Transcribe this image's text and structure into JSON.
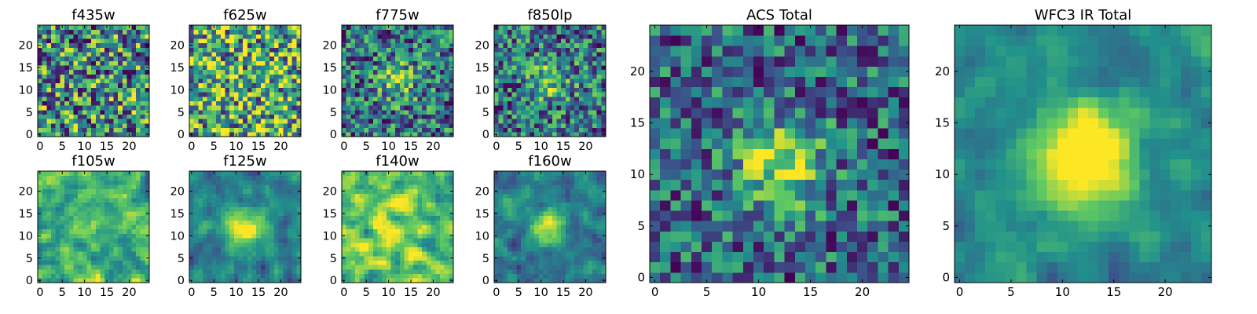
{
  "figure": {
    "colormap": "viridis",
    "colormap_stops": [
      "#440154",
      "#3b528b",
      "#21918c",
      "#5ec962",
      "#fde725"
    ]
  },
  "chart_data": [
    {
      "type": "heatmap",
      "title": "f435w",
      "shape": [
        25,
        25
      ],
      "x_ticks": [
        0,
        5,
        10,
        15,
        20
      ],
      "y_ticks": [
        0,
        5,
        10,
        15,
        20
      ],
      "texture": "uniform noise",
      "seed": 11
    },
    {
      "type": "heatmap",
      "title": "f625w",
      "shape": [
        25,
        25
      ],
      "x_ticks": [
        0,
        5,
        10,
        15,
        20
      ],
      "y_ticks": [
        0,
        5,
        10,
        15,
        20
      ],
      "texture": "uniform noise, bright",
      "seed": 23
    },
    {
      "type": "heatmap",
      "title": "f775w",
      "shape": [
        25,
        25
      ],
      "x_ticks": [
        0,
        5,
        10,
        15,
        20
      ],
      "y_ticks": [
        0,
        5,
        10,
        15,
        20
      ],
      "texture": "noise with faint central source",
      "seed": 37
    },
    {
      "type": "heatmap",
      "title": "f850lp",
      "shape": [
        25,
        25
      ],
      "x_ticks": [
        0,
        5,
        10,
        15,
        20
      ],
      "y_ticks": [
        0,
        5,
        10,
        15,
        20
      ],
      "texture": "noise with faint central source",
      "seed": 41
    },
    {
      "type": "heatmap",
      "title": "f105w",
      "shape": [
        25,
        25
      ],
      "x_ticks": [
        0,
        5,
        10,
        15,
        20
      ],
      "y_ticks": [
        0,
        5,
        10,
        15,
        20
      ],
      "texture": "smooth correlated noise",
      "seed": 53
    },
    {
      "type": "heatmap",
      "title": "f125w",
      "shape": [
        25,
        25
      ],
      "x_ticks": [
        0,
        5,
        10,
        15,
        20
      ],
      "y_ticks": [
        0,
        5,
        10,
        15,
        20
      ],
      "texture": "smooth noise with central source",
      "seed": 67
    },
    {
      "type": "heatmap",
      "title": "f140w",
      "shape": [
        25,
        25
      ],
      "x_ticks": [
        0,
        5,
        10,
        15,
        20
      ],
      "y_ticks": [
        0,
        5,
        10,
        15,
        20
      ],
      "texture": "smooth correlated noise, bright",
      "seed": 71
    },
    {
      "type": "heatmap",
      "title": "f160w",
      "shape": [
        25,
        25
      ],
      "x_ticks": [
        0,
        5,
        10,
        15,
        20
      ],
      "y_ticks": [
        0,
        5,
        10,
        15,
        20
      ],
      "texture": "smooth noise with central source",
      "seed": 83
    },
    {
      "type": "heatmap",
      "title": "ACS Total",
      "shape": [
        25,
        25
      ],
      "x_ticks": [
        0,
        5,
        10,
        15,
        20
      ],
      "y_ticks": [
        0,
        5,
        10,
        15,
        20
      ],
      "texture": "noise with central source",
      "source_center": [
        12,
        11
      ],
      "seed": 97
    },
    {
      "type": "heatmap",
      "title": "WFC3 IR Total",
      "shape": [
        25,
        25
      ],
      "x_ticks": [
        0,
        5,
        10,
        15,
        20
      ],
      "y_ticks": [
        0,
        5,
        10,
        15,
        20
      ],
      "texture": "smooth with bright central source",
      "source_center": [
        12,
        12
      ],
      "seed": 101
    }
  ]
}
